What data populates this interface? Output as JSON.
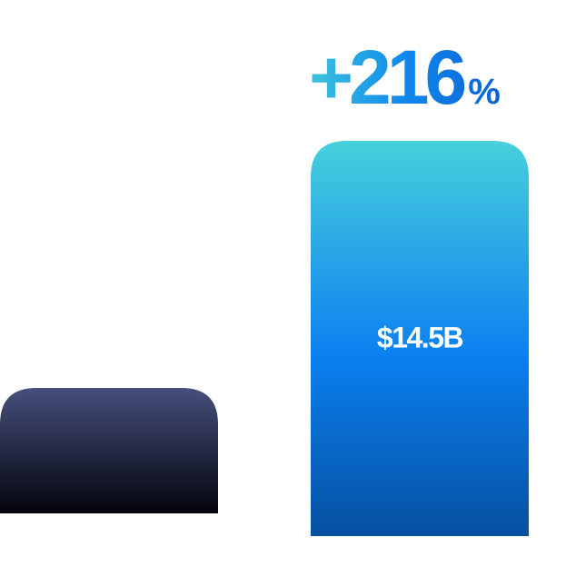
{
  "chart_data": {
    "type": "bar",
    "annotation": "+216%",
    "categories": [
      null,
      null
    ],
    "values": [
      4.6,
      14.5
    ],
    "value_labels": [
      null,
      "$14.5B"
    ]
  }
}
